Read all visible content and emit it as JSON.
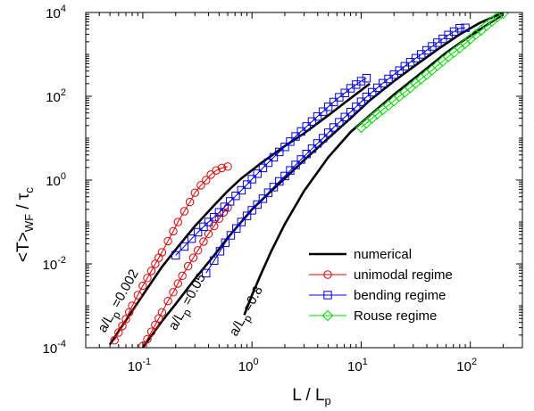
{
  "chart_data": {
    "type": "line",
    "title": "",
    "xscale": "log",
    "yscale": "log",
    "xlim": [
      0.03,
      300
    ],
    "ylim": [
      0.0001,
      10000
    ],
    "grid": false,
    "legend_position": "bottom-right",
    "xlabel_parts": [
      "L / L",
      "p"
    ],
    "ylabel_parts": [
      "<T>",
      "WF",
      " / τ",
      "c"
    ],
    "x_ticks": [
      {
        "value": 0.1,
        "base": "10",
        "exp": "-1"
      },
      {
        "value": 1,
        "base": "10",
        "exp": "0"
      },
      {
        "value": 10,
        "base": "10",
        "exp": "1"
      },
      {
        "value": 100,
        "base": "10",
        "exp": "2"
      }
    ],
    "y_ticks": [
      {
        "value": 0.0001,
        "base": "10",
        "exp": "-4"
      },
      {
        "value": 0.01,
        "base": "10",
        "exp": "-2"
      },
      {
        "value": 1,
        "base": "10",
        "exp": "0"
      },
      {
        "value": 100,
        "base": "10",
        "exp": "2"
      },
      {
        "value": 10000,
        "base": "10",
        "exp": "4"
      }
    ],
    "legend": [
      {
        "label": "numerical",
        "color": "#000000",
        "marker": "none"
      },
      {
        "label": "unimodal regime",
        "color": "#e00000",
        "marker": "circle"
      },
      {
        "label": "bending regime",
        "color": "#0000e0",
        "marker": "square"
      },
      {
        "label": "Rouse regime",
        "color": "#00dd00",
        "marker": "diamond"
      }
    ],
    "annotations": [
      {
        "text": [
          "a/L",
          "p",
          " =0.002"
        ],
        "x": 0.045,
        "y": 0.00022,
        "angle": -61
      },
      {
        "text": [
          "a/L",
          "p",
          " =0.05"
        ],
        "x": 0.2,
        "y": 0.00025,
        "angle": -61
      },
      {
        "text": [
          "a/L",
          "p",
          " =0.8"
        ],
        "x": 0.72,
        "y": 0.00018,
        "angle": -61
      }
    ],
    "series": [
      {
        "name": "numerical",
        "color": "#000000",
        "lines": [
          {
            "x": [
              0.05,
              0.07,
              0.1,
              0.15,
              0.2,
              0.3,
              0.45,
              0.6,
              0.8,
              1.2,
              2,
              3,
              5,
              8,
              12
            ],
            "y": [
              0.00012,
              0.00045,
              0.0018,
              0.0085,
              0.022,
              0.08,
              0.25,
              0.55,
              1.1,
              2.5,
              6.5,
              13,
              35,
              90,
              200
            ]
          },
          {
            "x": [
              0.1,
              0.15,
              0.2,
              0.3,
              0.45,
              0.6,
              1,
              1.5,
              2,
              3,
              5,
              8,
              12,
              20,
              30,
              50,
              80,
              120,
              200
            ],
            "y": [
              0.0001,
              0.00043,
              0.0011,
              0.0044,
              0.016,
              0.042,
              0.2,
              0.55,
              1.1,
              3,
              10,
              30,
              80,
              230,
              500,
              1300,
              3000,
              5500,
              10000
            ]
          },
          {
            "x": [
              0.85,
              1,
              1.2,
              1.5,
              2,
              3,
              5,
              8,
              12,
              20,
              35,
              60,
              100,
              200
            ],
            "y": [
              0.0006,
              0.0018,
              0.0055,
              0.02,
              0.09,
              0.55,
              3.5,
              14,
              35,
              110,
              350,
              1100,
              2800,
              9000
            ]
          }
        ]
      },
      {
        "name": "unimodal regime",
        "color": "#e00000",
        "marker": "circle",
        "lines": [
          {
            "x": [
              0.055,
              0.06,
              0.065,
              0.07,
              0.075,
              0.08,
              0.09,
              0.1,
              0.11,
              0.12,
              0.13,
              0.14,
              0.15,
              0.17,
              0.19,
              0.21,
              0.24,
              0.27,
              0.3,
              0.34,
              0.38,
              0.42,
              0.47,
              0.53,
              0.6
            ],
            "y": [
              0.00015,
              0.00023,
              0.00033,
              0.00048,
              0.0007,
              0.001,
              0.0018,
              0.003,
              0.0046,
              0.0068,
              0.01,
              0.014,
              0.019,
              0.035,
              0.06,
              0.1,
              0.18,
              0.3,
              0.5,
              0.75,
              1.0,
              1.35,
              1.7,
              1.95,
              2.1
            ]
          },
          {
            "x": [
              0.1,
              0.11,
              0.12,
              0.13,
              0.14,
              0.15,
              0.17,
              0.19,
              0.21,
              0.23,
              0.26,
              0.29,
              0.32,
              0.36,
              0.4,
              0.45,
              0.5,
              0.55,
              0.6
            ],
            "y": [
              0.00011,
              0.00016,
              0.00024,
              0.00035,
              0.0005,
              0.0007,
              0.0013,
              0.0021,
              0.0034,
              0.0052,
              0.0088,
              0.014,
              0.021,
              0.034,
              0.052,
              0.08,
              0.12,
              0.17,
              0.22
            ]
          }
        ]
      },
      {
        "name": "bending regime",
        "color": "#0000e0",
        "marker": "square",
        "lines": [
          {
            "x": [
              0.2,
              0.24,
              0.28,
              0.32,
              0.36,
              0.4,
              0.45,
              0.5,
              0.56,
              0.63,
              0.71,
              0.8,
              0.9,
              1.0,
              1.12,
              1.26,
              1.41,
              1.58,
              1.78,
              2.0,
              2.24,
              2.51,
              2.82,
              3.16,
              3.55,
              3.98,
              4.47,
              5.0,
              5.6,
              6.3,
              7.1,
              8.0,
              9.0,
              10.0,
              11.2
            ],
            "y": [
              0.016,
              0.026,
              0.04,
              0.057,
              0.077,
              0.1,
              0.13,
              0.17,
              0.23,
              0.31,
              0.42,
              0.57,
              0.78,
              1.05,
              1.42,
              1.95,
              2.6,
              3.5,
              4.7,
              6.2,
              8.3,
              11,
              14.5,
              19,
              25,
              33,
              43,
              56,
              73,
              95,
              120,
              155,
              190,
              230,
              270
            ]
          },
          {
            "x": [
              0.38,
              0.45,
              0.51,
              0.57,
              0.64,
              0.72,
              0.8,
              0.9,
              1.0,
              1.12,
              1.26,
              1.41,
              1.58,
              1.78,
              2.0,
              2.24,
              2.51,
              2.82,
              3.16,
              3.55,
              3.98,
              4.47,
              5.0,
              5.6,
              6.3,
              7.1,
              8.0,
              9.0,
              10.0,
              11.2,
              12.6,
              14.1,
              15.8,
              17.8,
              20,
              22.4,
              25.1,
              28.2,
              31.6,
              35.5,
              39.8,
              44.7,
              50,
              56,
              63,
              71,
              80,
              90
            ],
            "y": [
              0.006,
              0.012,
              0.02,
              0.032,
              0.048,
              0.07,
              0.1,
              0.14,
              0.19,
              0.26,
              0.36,
              0.5,
              0.68,
              0.93,
              1.25,
              1.7,
              2.3,
              3.1,
              4.2,
              5.6,
              7.5,
              10,
              13.5,
              18,
              24,
              32,
              42,
              56,
              74,
              97,
              125,
              160,
              205,
              260,
              330,
              410,
              520,
              650,
              810,
              1000,
              1250,
              1550,
              1900,
              2350,
              2900,
              3500,
              4200,
              4300
            ]
          }
        ]
      },
      {
        "name": "Rouse regime",
        "color": "#00dd00",
        "marker": "diamond",
        "lines": [
          {
            "x": [
              10,
              11.2,
              12.6,
              14.1,
              15.8,
              17.8,
              20,
              22.4,
              25.1,
              28.2,
              31.6,
              35.5,
              39.8,
              44.7,
              50,
              56,
              63,
              71,
              80,
              90,
              100,
              112,
              126,
              141,
              158,
              178,
              200
            ],
            "y": [
              18,
              23,
              30,
              38,
              48,
              61,
              78,
              100,
              125,
              160,
              205,
              260,
              330,
              420,
              540,
              690,
              880,
              1120,
              1430,
              1830,
              2330,
              2980,
              3800,
              4850,
              6200,
              7900,
              9500
            ]
          }
        ]
      }
    ]
  }
}
